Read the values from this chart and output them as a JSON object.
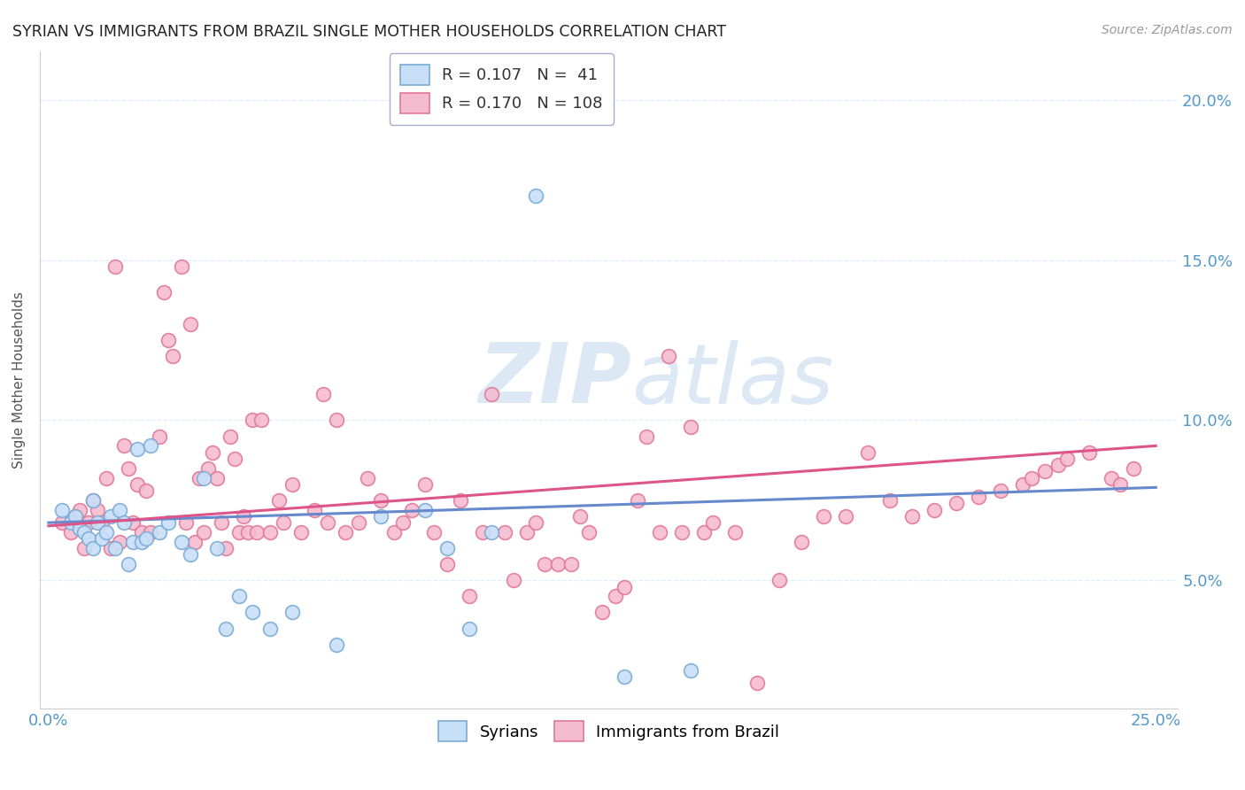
{
  "title": "SYRIAN VS IMMIGRANTS FROM BRAZIL SINGLE MOTHER HOUSEHOLDS CORRELATION CHART",
  "source": "Source: ZipAtlas.com",
  "ylabel": "Single Mother Households",
  "yticks": [
    0.05,
    0.1,
    0.15,
    0.2
  ],
  "ytick_labels": [
    "5.0%",
    "10.0%",
    "15.0%",
    "20.0%"
  ],
  "xtick_labels": [
    "0.0%",
    "",
    "",
    "",
    "",
    "25.0%"
  ],
  "xticks": [
    0.0,
    0.05,
    0.1,
    0.15,
    0.2,
    0.25
  ],
  "xlim": [
    -0.002,
    0.255
  ],
  "ylim": [
    0.01,
    0.215
  ],
  "legend_r1": "R = 0.107",
  "legend_n1": "N =  41",
  "legend_r2": "R = 0.170",
  "legend_n2": "N = 108",
  "color_syrian_fill": "#c8dff8",
  "color_syrian_edge": "#7aaad4",
  "color_brazil_fill": "#f5bcd0",
  "color_brazil_edge": "#e07898",
  "color_syrian_line": "#6688cc",
  "color_brazil_line": "#dd5588",
  "color_axis_text": "#5599cc",
  "watermark_color": "#dce9f5",
  "grid_color": "#ddeeff",
  "syrian_x": [
    0.003,
    0.005,
    0.006,
    0.007,
    0.008,
    0.009,
    0.01,
    0.01,
    0.011,
    0.012,
    0.013,
    0.014,
    0.015,
    0.016,
    0.017,
    0.018,
    0.019,
    0.02,
    0.021,
    0.022,
    0.023,
    0.025,
    0.027,
    0.03,
    0.032,
    0.035,
    0.038,
    0.04,
    0.043,
    0.046,
    0.05,
    0.055,
    0.065,
    0.075,
    0.085,
    0.09,
    0.095,
    0.1,
    0.11,
    0.13,
    0.145
  ],
  "syrian_y": [
    0.072,
    0.068,
    0.07,
    0.066,
    0.065,
    0.063,
    0.075,
    0.06,
    0.068,
    0.063,
    0.065,
    0.07,
    0.06,
    0.072,
    0.068,
    0.055,
    0.062,
    0.091,
    0.062,
    0.063,
    0.092,
    0.065,
    0.068,
    0.062,
    0.058,
    0.082,
    0.06,
    0.035,
    0.045,
    0.04,
    0.035,
    0.04,
    0.03,
    0.07,
    0.072,
    0.06,
    0.035,
    0.065,
    0.17,
    0.02,
    0.022
  ],
  "brazil_x": [
    0.003,
    0.005,
    0.006,
    0.007,
    0.008,
    0.009,
    0.01,
    0.011,
    0.012,
    0.013,
    0.014,
    0.015,
    0.016,
    0.017,
    0.018,
    0.019,
    0.02,
    0.021,
    0.022,
    0.023,
    0.025,
    0.026,
    0.027,
    0.028,
    0.03,
    0.031,
    0.032,
    0.033,
    0.034,
    0.035,
    0.036,
    0.037,
    0.038,
    0.039,
    0.04,
    0.041,
    0.042,
    0.043,
    0.044,
    0.045,
    0.046,
    0.047,
    0.048,
    0.05,
    0.052,
    0.053,
    0.055,
    0.057,
    0.06,
    0.062,
    0.063,
    0.065,
    0.067,
    0.07,
    0.072,
    0.075,
    0.078,
    0.08,
    0.082,
    0.085,
    0.087,
    0.09,
    0.093,
    0.095,
    0.098,
    0.1,
    0.103,
    0.105,
    0.108,
    0.11,
    0.112,
    0.115,
    0.118,
    0.12,
    0.122,
    0.125,
    0.128,
    0.13,
    0.133,
    0.135,
    0.138,
    0.14,
    0.143,
    0.145,
    0.148,
    0.15,
    0.155,
    0.16,
    0.165,
    0.17,
    0.175,
    0.18,
    0.185,
    0.19,
    0.195,
    0.2,
    0.205,
    0.21,
    0.215,
    0.22,
    0.222,
    0.225,
    0.228,
    0.23,
    0.235,
    0.24,
    0.242,
    0.245
  ],
  "brazil_y": [
    0.068,
    0.065,
    0.07,
    0.072,
    0.06,
    0.068,
    0.075,
    0.072,
    0.068,
    0.082,
    0.06,
    0.148,
    0.062,
    0.092,
    0.085,
    0.068,
    0.08,
    0.065,
    0.078,
    0.065,
    0.095,
    0.14,
    0.125,
    0.12,
    0.148,
    0.068,
    0.13,
    0.062,
    0.082,
    0.065,
    0.085,
    0.09,
    0.082,
    0.068,
    0.06,
    0.095,
    0.088,
    0.065,
    0.07,
    0.065,
    0.1,
    0.065,
    0.1,
    0.065,
    0.075,
    0.068,
    0.08,
    0.065,
    0.072,
    0.108,
    0.068,
    0.1,
    0.065,
    0.068,
    0.082,
    0.075,
    0.065,
    0.068,
    0.072,
    0.08,
    0.065,
    0.055,
    0.075,
    0.045,
    0.065,
    0.108,
    0.065,
    0.05,
    0.065,
    0.068,
    0.055,
    0.055,
    0.055,
    0.07,
    0.065,
    0.04,
    0.045,
    0.048,
    0.075,
    0.095,
    0.065,
    0.12,
    0.065,
    0.098,
    0.065,
    0.068,
    0.065,
    0.018,
    0.05,
    0.062,
    0.07,
    0.07,
    0.09,
    0.075,
    0.07,
    0.072,
    0.074,
    0.076,
    0.078,
    0.08,
    0.082,
    0.084,
    0.086,
    0.088,
    0.09,
    0.082,
    0.08,
    0.085
  ]
}
